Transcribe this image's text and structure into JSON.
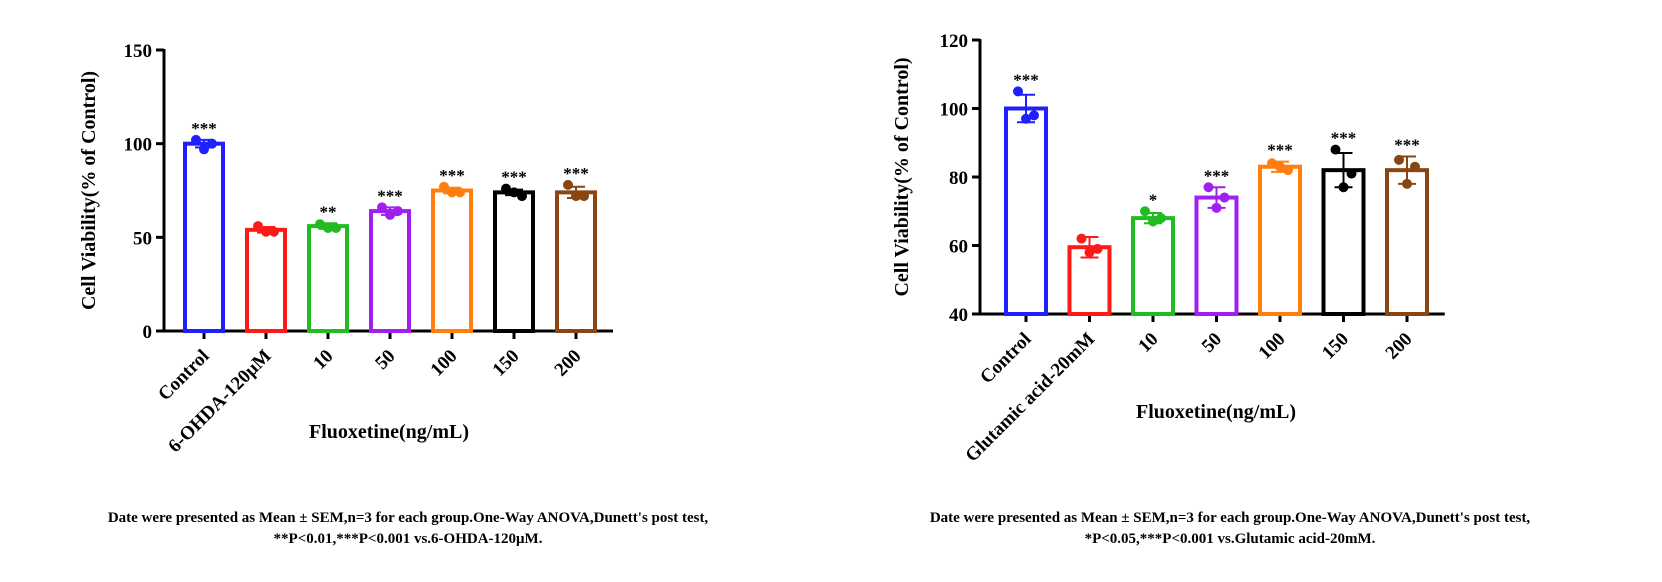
{
  "chart_data": [
    {
      "type": "bar",
      "ylabel": "Cell Viability(% of Control)",
      "xlabel": "Fluoxetine(ng/mL)",
      "categories": [
        "Control",
        "6-OHDA-120μM",
        "10",
        "50",
        "100",
        "150",
        "200"
      ],
      "values": [
        100,
        54,
        56,
        64,
        75,
        74,
        74
      ],
      "errors": [
        2,
        1.5,
        1.5,
        2,
        1.5,
        1.5,
        3
      ],
      "points": [
        [
          102,
          97,
          100
        ],
        [
          56,
          53,
          53
        ],
        [
          57,
          55,
          55
        ],
        [
          66,
          62,
          64
        ],
        [
          77,
          74,
          74
        ],
        [
          76,
          74,
          72
        ],
        [
          78,
          72,
          72
        ]
      ],
      "colors": [
        "#1f1fff",
        "#ff1a1a",
        "#22bb22",
        "#a020f0",
        "#ff7f0e",
        "#000000",
        "#8b4513"
      ],
      "significance": [
        "***",
        null,
        "**",
        "***",
        "***",
        "***",
        "***"
      ],
      "ylim": [
        0,
        150
      ],
      "yticks": [
        0,
        50,
        100,
        150
      ],
      "caption": [
        "Date were presented as Mean ± SEM,n=3 for each group.One-Way ANOVA,Dunett's post test,",
        "**P<0.01,***P<0.001 vs.6-OHDA-120μM."
      ]
    },
    {
      "type": "bar",
      "ylabel": "Cell Viability(% of Control)",
      "xlabel": "Fluoxetine(ng/mL)",
      "categories": [
        "Control",
        "Glutamic acid-20mM",
        "10",
        "50",
        "100",
        "150",
        "200"
      ],
      "values": [
        100,
        59.5,
        68,
        74,
        83,
        82,
        82
      ],
      "errors": [
        4,
        3,
        1.5,
        3,
        1.5,
        5,
        4
      ],
      "points": [
        [
          105,
          97,
          98
        ],
        [
          62,
          58,
          59
        ],
        [
          70,
          67,
          68
        ],
        [
          77,
          71,
          74
        ],
        [
          84,
          83,
          82
        ],
        [
          88,
          77,
          81
        ],
        [
          85,
          78,
          83
        ]
      ],
      "colors": [
        "#1f1fff",
        "#ff1a1a",
        "#22bb22",
        "#a020f0",
        "#ff7f0e",
        "#000000",
        "#8b4513"
      ],
      "significance": [
        "***",
        null,
        "*",
        "***",
        "***",
        "***",
        "***"
      ],
      "ylim": [
        40,
        120
      ],
      "yticks": [
        40,
        60,
        80,
        100,
        120
      ],
      "caption": [
        "Date were presented as Mean ± SEM,n=3 for each group.One-Way ANOVA,Dunett's post test,",
        "*P<0.05,***P<0.001 vs.Glutamic acid-20mM."
      ]
    }
  ]
}
